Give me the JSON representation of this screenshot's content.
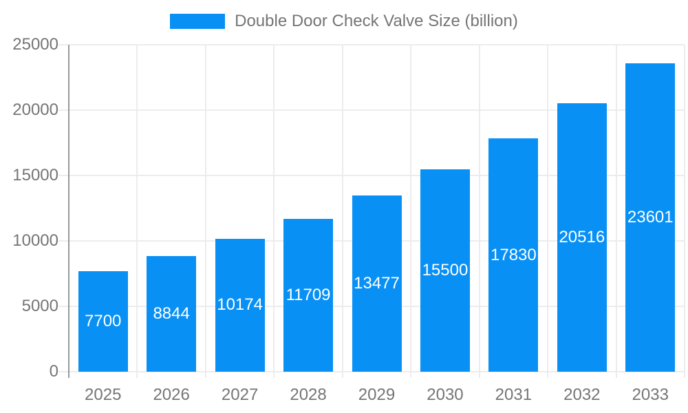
{
  "chart_data": {
    "type": "bar",
    "title": "Double Door Check Valve Size (billion)",
    "categories": [
      "2025",
      "2026",
      "2027",
      "2028",
      "2029",
      "2030",
      "2031",
      "2032",
      "2033"
    ],
    "values": [
      7700,
      8844,
      10174,
      11709,
      13477,
      15500,
      17830,
      20516,
      23601
    ],
    "xlabel": "",
    "ylabel": "",
    "ylim": [
      0,
      25000
    ],
    "yticks": [
      0,
      5000,
      10000,
      15000,
      20000,
      25000
    ],
    "grid": "horizontal-and-vertical",
    "legend_position": "top-center",
    "value_labels": "inside-center-white",
    "colors": {
      "bar": "#0890f5",
      "value_text": "#ffffff",
      "axis_text": "#757575",
      "grid_line": "#ececec",
      "axis_line": "#999999",
      "background": "#ffffff"
    }
  }
}
